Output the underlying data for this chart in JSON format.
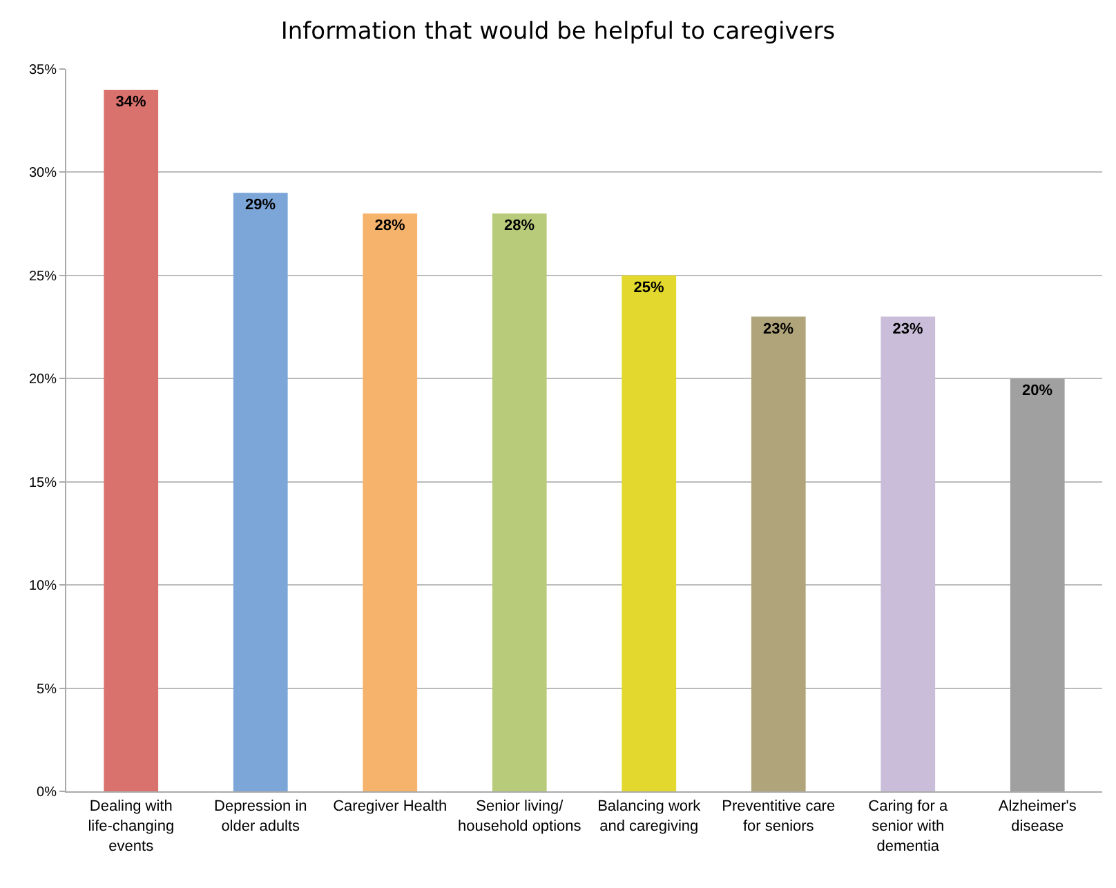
{
  "chart_data": {
    "type": "bar",
    "title": "Information that would be helpful to caregivers",
    "categories": [
      "Dealing with life-changing events",
      "Depression in older adults",
      "Caregiver Health",
      "Senior living/ household options",
      "Balancing work and caregiving",
      "Preventitive care for seniors",
      "Caring for a senior with dementia",
      "Alzheimer's disease"
    ],
    "values": [
      34,
      29,
      28,
      28,
      25,
      23,
      23,
      20
    ],
    "colors": [
      "#d9716d",
      "#7ba6d7",
      "#f6b36c",
      "#b8cb7b",
      "#e3d92e",
      "#b0a47a",
      "#c9bdd9",
      "#a0a0a0"
    ],
    "value_labels": [
      "34%",
      "29%",
      "28%",
      "28%",
      "25%",
      "23%",
      "23%",
      "20%"
    ],
    "ylim": [
      0,
      35
    ],
    "yticks": [
      {
        "value": 0,
        "label": "0%"
      },
      {
        "value": 5,
        "label": "5%"
      },
      {
        "value": 10,
        "label": "10%"
      },
      {
        "value": 15,
        "label": "15%"
      },
      {
        "value": 20,
        "label": "20%"
      },
      {
        "value": 25,
        "label": "25%"
      },
      {
        "value": 30,
        "label": "30%"
      },
      {
        "value": 35,
        "label": "35%"
      }
    ],
    "grid": "y"
  }
}
